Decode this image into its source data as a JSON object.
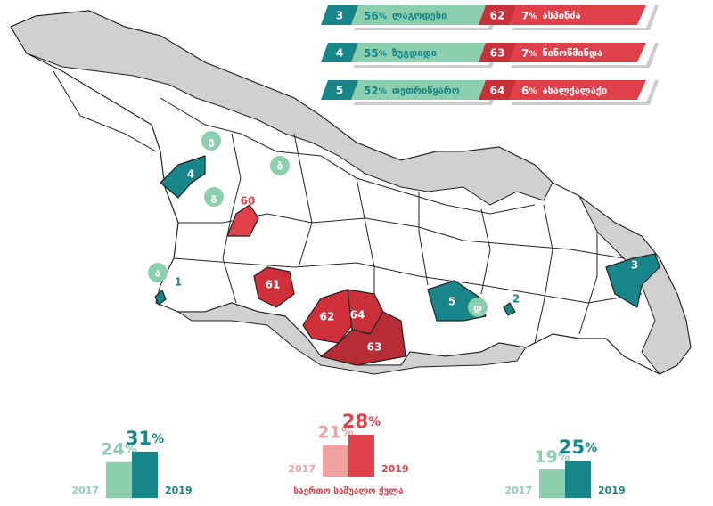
{
  "legend": {
    "percent_sign": "%",
    "teal": [
      {
        "id": "3",
        "share": 56,
        "name": "ლაგოდეხი"
      },
      {
        "id": "4",
        "share": 55,
        "name": "ზუგდიდი"
      },
      {
        "id": "5",
        "share": 52,
        "name": "თეთრიწყარო"
      }
    ],
    "red": [
      {
        "id": "62",
        "share": 7,
        "name": "ასპინძა"
      },
      {
        "id": "63",
        "share": 7,
        "name": "ნინოწმინდა"
      },
      {
        "id": "64",
        "share": 6,
        "name": "ახალქალაქი"
      }
    ]
  },
  "map_labels": [
    "4",
    "60",
    "61",
    "62",
    "64",
    "63",
    "5",
    "2",
    "3",
    "1"
  ],
  "map_markers": [
    "ე",
    "ბ",
    "გ",
    "ა",
    "დ"
  ],
  "summary": {
    "caption": "საერთო საშუალო ქულა",
    "groups": [
      {
        "years": [
          "2017",
          "2019"
        ],
        "values": [
          24,
          31
        ]
      },
      {
        "years": [
          "2017",
          "2019"
        ],
        "values": [
          21,
          28
        ]
      },
      {
        "years": [
          "2017",
          "2019"
        ],
        "values": [
          19,
          25
        ]
      }
    ]
  }
}
